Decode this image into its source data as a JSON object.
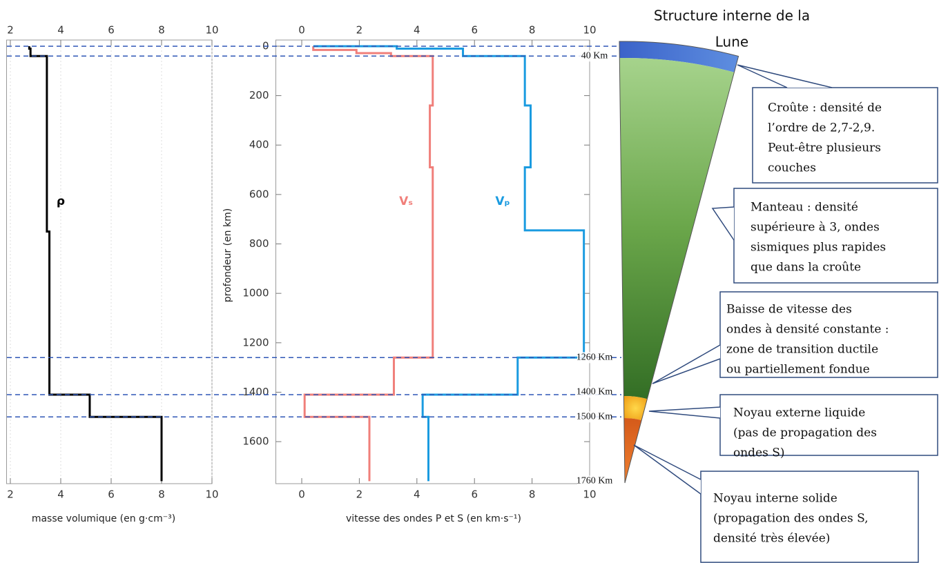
{
  "title": [
    "Structure interne de la",
    "Lune"
  ],
  "chart_data": [
    {
      "type": "line",
      "x_label": "masse volumique (en g·cm⁻³)",
      "xlim": [
        1.85,
        10
      ],
      "xticks": [
        2,
        4,
        6,
        8,
        10
      ],
      "ylim": [
        -25,
        1770
      ],
      "y_inverted": true,
      "grid": true,
      "series": [
        {
          "name": "ρ",
          "color": "#000000",
          "values": [
            2.75,
            2.75,
            2.8,
            2.8,
            3.45,
            3.45,
            3.55,
            3.55,
            5.15,
            5.15,
            8.0,
            8.0
          ],
          "depth": [
            0,
            10,
            10,
            40,
            40,
            750,
            750,
            1410,
            1410,
            1500,
            1500,
            1760
          ]
        }
      ]
    },
    {
      "type": "line",
      "x_label": "vitesse des ondes P et S (en km·s⁻¹)",
      "y_label": "profondeur (en km)",
      "xlim": [
        -0.9,
        10
      ],
      "xticks": [
        0,
        2,
        4,
        6,
        8,
        10
      ],
      "ylim": [
        -25,
        1770
      ],
      "y_inverted": true,
      "yticks": [
        0,
        200,
        400,
        600,
        800,
        1000,
        1200,
        1400,
        1600
      ],
      "grid": false,
      "series": [
        {
          "name": "Vₛ",
          "color": "#f07f7a",
          "values": [
            0.4,
            0.4,
            1.9,
            1.9,
            3.1,
            3.1,
            4.55,
            4.55,
            4.45,
            4.45,
            4.55,
            4.55,
            3.2,
            3.2,
            0.1,
            0.1,
            2.35,
            2.35
          ],
          "depth": [
            0,
            15,
            15,
            28,
            28,
            40,
            40,
            240,
            240,
            490,
            490,
            1260,
            1260,
            1410,
            1410,
            1500,
            1500,
            1760
          ]
        },
        {
          "name": "Vₚ",
          "color": "#1a9be0",
          "values": [
            0.4,
            3.3,
            3.3,
            5.6,
            5.6,
            7.75,
            7.75,
            7.95,
            7.95,
            7.75,
            7.75,
            9.8,
            9.8,
            7.5,
            7.5,
            4.2,
            4.2,
            4.4,
            4.4
          ],
          "depth": [
            0,
            0,
            10,
            10,
            40,
            40,
            240,
            240,
            490,
            490,
            745,
            745,
            1260,
            1260,
            1410,
            1410,
            1500,
            1500,
            1760
          ]
        }
      ]
    }
  ],
  "depth_lines": [
    0,
    40,
    1260,
    1410,
    1500
  ],
  "depth_labels": [
    {
      "value": 40,
      "label": "40 Km"
    },
    {
      "value": 1260,
      "label": "1260 Km"
    },
    {
      "value": 1400,
      "label": "1400 Km"
    },
    {
      "value": 1500,
      "label": "1500 Km"
    },
    {
      "value": 1760,
      "label": "1760 Km"
    }
  ],
  "callouts": [
    {
      "lines": [
        "Croûte : densité de",
        "l’ordre de 2,7-2,9.",
        "Peut-être plusieurs",
        "couches"
      ]
    },
    {
      "lines": [
        "Manteau : densité",
        "supérieure à 3, ondes",
        "sismiques plus rapides",
        "que dans la croûte"
      ]
    },
    {
      "lines": [
        "Baisse de vitesse des",
        "ondes à densité constante :",
        "zone de transition ductile",
        "ou partiellement fondue"
      ]
    },
    {
      "lines": [
        "Noyau externe liquide",
        "(pas de propagation des",
        "ondes S)"
      ]
    },
    {
      "lines": [
        "Noyau interne solide",
        "(propagation des ondes S,",
        "densité très élevée)"
      ]
    }
  ]
}
